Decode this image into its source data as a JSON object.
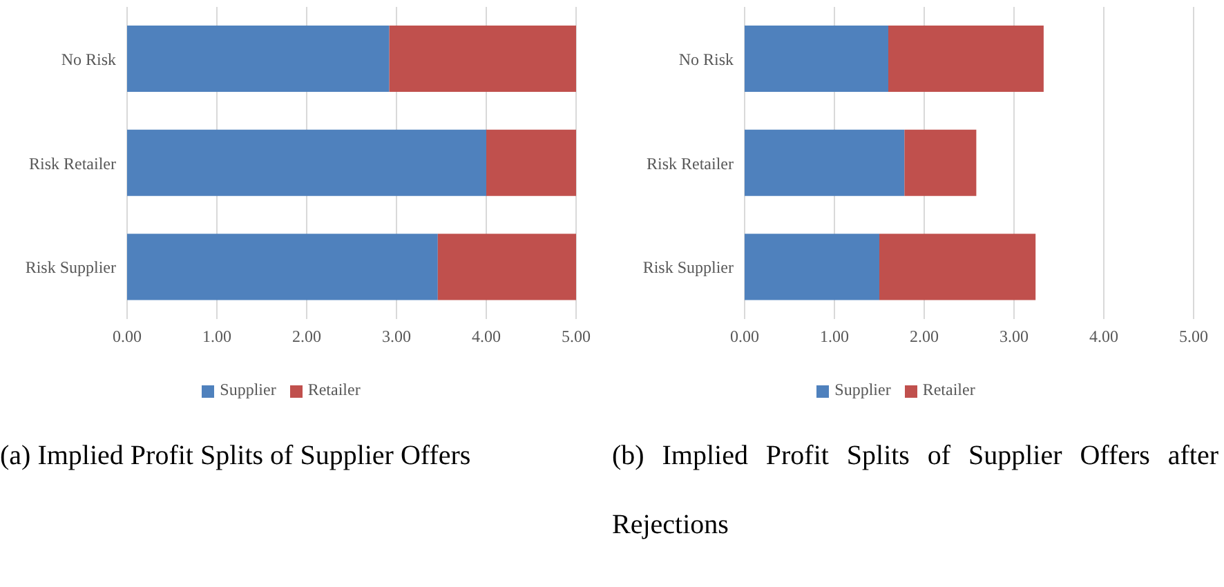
{
  "chart_data": [
    {
      "type": "bar",
      "orientation": "horizontal",
      "stacked": true,
      "title": "(a) Implied Profit Splits of Supplier Offers",
      "categories": [
        "No Risk",
        "Risk Retailer",
        "Risk Supplier"
      ],
      "series": [
        {
          "name": "Supplier",
          "color": "#4f81bd",
          "values": [
            2.92,
            4.0,
            3.46
          ]
        },
        {
          "name": "Retailer",
          "color": "#c0504d",
          "values": [
            2.08,
            1.0,
            1.54
          ]
        }
      ],
      "xlim": [
        0,
        5
      ],
      "xticks": [
        {
          "value": 0,
          "label": "0.00"
        },
        {
          "value": 1,
          "label": "1.00"
        },
        {
          "value": 2,
          "label": "2.00"
        },
        {
          "value": 3,
          "label": "3.00"
        },
        {
          "value": 4,
          "label": "4.00"
        },
        {
          "value": 5,
          "label": "5.00"
        }
      ],
      "grid": "x",
      "legend": "bottom"
    },
    {
      "type": "bar",
      "orientation": "horizontal",
      "stacked": true,
      "title": "(b) Implied Profit Splits of Supplier Offers after Rejections",
      "categories": [
        "No Risk",
        "Risk Retailer",
        "Risk Supplier"
      ],
      "series": [
        {
          "name": "Supplier",
          "color": "#4f81bd",
          "values": [
            1.6,
            1.78,
            1.5
          ]
        },
        {
          "name": "Retailer",
          "color": "#c0504d",
          "values": [
            1.73,
            0.8,
            1.74
          ]
        }
      ],
      "xlim": [
        0,
        5
      ],
      "xticks": [
        {
          "value": 0,
          "label": "0.00"
        },
        {
          "value": 1,
          "label": "1.00"
        },
        {
          "value": 2,
          "label": "2.00"
        },
        {
          "value": 3,
          "label": "3.00"
        },
        {
          "value": 4,
          "label": "4.00"
        },
        {
          "value": 5,
          "label": "5.00"
        }
      ],
      "grid": "x",
      "legend": "bottom"
    }
  ]
}
